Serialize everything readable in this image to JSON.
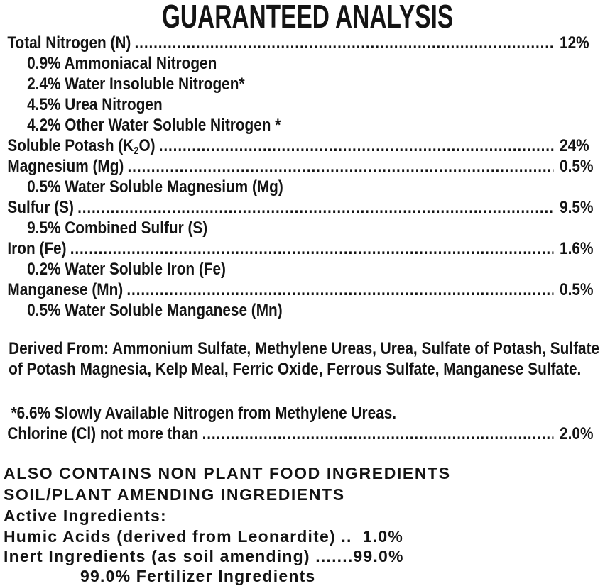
{
  "title": "GUARANTEED ANALYSIS",
  "analysis": {
    "rows": [
      {
        "label": "Total Nitrogen (N)",
        "value": "12%",
        "subitems": [
          "0.9% Ammoniacal Nitrogen",
          "2.4% Water Insoluble Nitrogen*",
          "4.5% Urea Nitrogen",
          "4.2% Other Water Soluble Nitrogen *"
        ]
      },
      {
        "label_pre": "Soluble Potash (K",
        "label_sub": "2",
        "label_post": "O)",
        "value": "24%"
      },
      {
        "label": "Magnesium (Mg)",
        "value": "0.5%",
        "subitems": [
          "0.5% Water Soluble Magnesium (Mg)"
        ]
      },
      {
        "label": "Sulfur (S)",
        "value": "9.5%",
        "subitems": [
          "9.5% Combined Sulfur (S)"
        ]
      },
      {
        "label": "Iron (Fe)",
        "value": "1.6%",
        "subitems": [
          "0.2% Water Soluble Iron (Fe)"
        ]
      },
      {
        "label": "Manganese (Mn)",
        "value": "0.5%",
        "subitems": [
          "0.5% Water Soluble Manganese (Mn)"
        ]
      }
    ],
    "derived_from": "Derived From: Ammonium Sulfate, Methylene Ureas, Urea, Sulfate of Potash, Sulfate of Potash Magnesia, Kelp Meal, Ferric Oxide, Ferrous Sulfate, Manganese Sulfate.",
    "footnote": "*6.6% Slowly Available Nitrogen from Methylene Ureas.",
    "chlorine": {
      "label": "Chlorine (Cl) not more than",
      "value": "2.0%"
    }
  },
  "non_plant_food": {
    "heading_line1": "ALSO CONTAINS NON PLANT FOOD INGREDIENTS",
    "heading_line2": "SOIL/PLANT AMENDING INGREDIENTS",
    "active_ingredients_label": "Active Ingredients:",
    "humic_acids_line": "Humic Acids (derived from Leonardite) ..  1.0%",
    "inert_ingredients_line": "Inert Ingredients (as soil amending) .......99.0%",
    "fertilizer_ingredients_line": "99.0% Fertilizer Ingredients"
  },
  "colors": {
    "text": "#141414",
    "background": "#ffffff"
  }
}
